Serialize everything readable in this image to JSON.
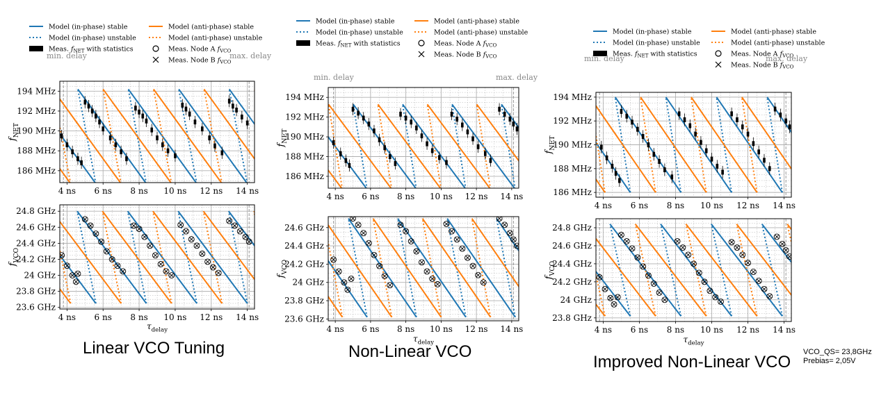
{
  "legend": {
    "inphase_stable": "Model (in-phase) stable",
    "inphase_unstable": "Model (in-phase) unstable",
    "antiphase_stable": "Model (anti-phase) stable",
    "antiphase_unstable": "Model (anti-phase) unstable",
    "fnet_meas": "Meas. f_NET with statistics",
    "nodeA": "Meas. Node A f_VCO",
    "nodeB": "Meas. Node B f_VCO"
  },
  "colors": {
    "inphase": "#1f77b4",
    "antiphase": "#ff7f0e",
    "meas": "#000000",
    "grid": "#b0b0b0",
    "delay_marker": "#999999"
  },
  "delay_labels": {
    "min": "min. delay",
    "max": "max. delay"
  },
  "captions": [
    "Linear VCO Tuning",
    "Non-Linear VCO",
    "Improved Non-Linear VCO"
  ],
  "note": {
    "line1": "VCO_QS= 23,8GHz",
    "line2": "Prebias= 2,05V"
  },
  "chart_data": [
    {
      "type": "line",
      "panel": "Linear VCO Tuning",
      "xlabel": "τ_delay",
      "x_ticks": [
        "4 ns",
        "6 ns",
        "8 ns",
        "10 ns",
        "12 ns",
        "14 ns"
      ],
      "xlim": [
        3.6,
        14.4
      ],
      "delay_markers": [
        3.8,
        14.1
      ],
      "fnet": {
        "ylabel": "f_NET",
        "ylim": [
          184.8,
          195
        ],
        "y_ticks": [
          "186 MHz",
          "188 MHz",
          "190 MHz",
          "192 MHz",
          "194 MHz"
        ],
        "model": {
          "period": 2.8,
          "min": 184.7,
          "max": 194.2,
          "rise_ns": 0.8,
          "ref_x": 5.6,
          "slope": -2.5
        },
        "measured": [
          [
            3.7,
            189.5
          ],
          [
            4.0,
            188.6
          ],
          [
            4.3,
            187.9
          ],
          [
            4.6,
            187.2
          ],
          [
            4.8,
            186.8
          ],
          [
            5.0,
            192.9
          ],
          [
            5.2,
            192.5
          ],
          [
            5.4,
            192.0
          ],
          [
            5.6,
            191.5
          ],
          [
            5.8,
            190.9
          ],
          [
            6.0,
            190.2
          ],
          [
            6.4,
            189.3
          ],
          [
            6.7,
            188.6
          ],
          [
            7.0,
            187.9
          ],
          [
            7.3,
            187.2
          ],
          [
            7.8,
            192.3
          ],
          [
            8.0,
            191.9
          ],
          [
            8.2,
            191.5
          ],
          [
            8.4,
            191.0
          ],
          [
            8.7,
            190.1
          ],
          [
            9.0,
            189.3
          ],
          [
            9.3,
            188.6
          ],
          [
            9.6,
            188.0
          ],
          [
            10.0,
            187.5
          ],
          [
            10.4,
            192.6
          ],
          [
            10.6,
            192.2
          ],
          [
            10.8,
            191.7
          ],
          [
            11.1,
            190.9
          ],
          [
            11.5,
            190.2
          ],
          [
            11.9,
            189.3
          ],
          [
            12.2,
            188.5
          ],
          [
            12.6,
            187.8
          ],
          [
            13.0,
            193.0
          ],
          [
            13.2,
            192.5
          ],
          [
            13.4,
            192.1
          ],
          [
            13.7,
            191.4
          ],
          [
            14.0,
            190.8
          ]
        ]
      },
      "fvco": {
        "ylabel": "f_VCO",
        "ylim": [
          23.58,
          24.88
        ],
        "y_ticks": [
          "23.6 GHz",
          "23.8 GHz",
          "24 GHz",
          "24.2 GHz",
          "24.4 GHz",
          "24.6 GHz",
          "24.8 GHz"
        ],
        "model": {
          "period": 2.8,
          "min": 23.65,
          "max": 24.8,
          "rise_ns": 0.8,
          "ref_x": 5.6,
          "slope": -0.3
        },
        "measured": [
          [
            3.7,
            24.25
          ],
          [
            4.0,
            24.12
          ],
          [
            4.3,
            24.0
          ],
          [
            4.5,
            23.92
          ],
          [
            4.6,
            24.02
          ],
          [
            5.0,
            24.7
          ],
          [
            5.3,
            24.62
          ],
          [
            5.6,
            24.52
          ],
          [
            5.9,
            24.42
          ],
          [
            6.2,
            24.3
          ],
          [
            6.5,
            24.2
          ],
          [
            6.8,
            24.12
          ],
          [
            7.1,
            24.05
          ],
          [
            7.7,
            24.62
          ],
          [
            8.0,
            24.58
          ],
          [
            8.3,
            24.48
          ],
          [
            8.6,
            24.37
          ],
          [
            8.9,
            24.25
          ],
          [
            9.2,
            24.14
          ],
          [
            9.5,
            24.05
          ],
          [
            9.8,
            24.0
          ],
          [
            10.3,
            24.63
          ],
          [
            10.6,
            24.55
          ],
          [
            10.9,
            24.45
          ],
          [
            11.2,
            24.37
          ],
          [
            11.5,
            24.27
          ],
          [
            11.8,
            24.17
          ],
          [
            12.1,
            24.1
          ],
          [
            12.4,
            24.03
          ],
          [
            13.0,
            24.68
          ],
          [
            13.3,
            24.62
          ],
          [
            13.6,
            24.55
          ],
          [
            13.9,
            24.48
          ],
          [
            14.1,
            24.42
          ]
        ]
      }
    },
    {
      "type": "line",
      "panel": "Non-Linear VCO",
      "xlabel": "τ_delay",
      "x_ticks": [
        "4 ns",
        "6 ns",
        "8 ns",
        "10 ns",
        "12 ns",
        "14 ns"
      ],
      "xlim": [
        3.6,
        14.4
      ],
      "delay_markers": [
        3.9,
        14.1
      ],
      "fnet": {
        "ylabel": "f_NET",
        "ylim": [
          184.8,
          195
        ],
        "y_ticks": [
          "186 MHz",
          "188 MHz",
          "190 MHz",
          "192 MHz",
          "194 MHz"
        ],
        "model": {
          "period": 2.8,
          "min": 184.7,
          "max": 193.3,
          "rise_ns": 0.9,
          "ref_x": 5.8,
          "slope": -2.4
        },
        "measured": [
          [
            3.9,
            189.4
          ],
          [
            4.3,
            188.3
          ],
          [
            4.6,
            187.6
          ],
          [
            4.8,
            187.1
          ],
          [
            5.0,
            192.8
          ],
          [
            5.3,
            192.4
          ],
          [
            5.6,
            191.9
          ],
          [
            5.9,
            191.3
          ],
          [
            6.2,
            190.6
          ],
          [
            6.5,
            189.7
          ],
          [
            6.8,
            188.9
          ],
          [
            7.1,
            188.0
          ],
          [
            7.4,
            187.3
          ],
          [
            7.7,
            192.3
          ],
          [
            8.0,
            191.9
          ],
          [
            8.3,
            191.5
          ],
          [
            8.6,
            190.9
          ],
          [
            8.9,
            190.1
          ],
          [
            9.2,
            189.3
          ],
          [
            9.5,
            188.6
          ],
          [
            9.9,
            187.9
          ],
          [
            10.3,
            187.4
          ],
          [
            10.6,
            192.3
          ],
          [
            10.9,
            191.8
          ],
          [
            11.2,
            191.2
          ],
          [
            11.5,
            190.5
          ],
          [
            11.8,
            189.8
          ],
          [
            12.1,
            189.0
          ],
          [
            12.5,
            188.3
          ],
          [
            12.8,
            187.6
          ],
          [
            13.3,
            192.8
          ],
          [
            13.6,
            192.3
          ],
          [
            13.9,
            191.8
          ],
          [
            14.1,
            191.3
          ],
          [
            14.3,
            190.8
          ]
        ]
      },
      "fvco": {
        "ylabel": "f_VCO",
        "ylim": [
          23.58,
          24.72
        ],
        "y_ticks": [
          "23.6 GHz",
          "23.8 GHz",
          "24 GHz",
          "24.2 GHz",
          "24.4 GHz",
          "24.6 GHz"
        ],
        "model": {
          "period": 2.8,
          "min": 23.62,
          "max": 24.7,
          "rise_ns": 0.9,
          "ref_x": 5.8,
          "slope": -0.28
        },
        "measured": [
          [
            3.9,
            24.25
          ],
          [
            4.2,
            24.12
          ],
          [
            4.5,
            24.0
          ],
          [
            4.7,
            23.92
          ],
          [
            4.9,
            24.04
          ],
          [
            5.0,
            24.7
          ],
          [
            5.3,
            24.63
          ],
          [
            5.6,
            24.54
          ],
          [
            5.9,
            24.43
          ],
          [
            6.2,
            24.3
          ],
          [
            6.5,
            24.18
          ],
          [
            6.8,
            24.07
          ],
          [
            7.1,
            23.97
          ],
          [
            7.7,
            24.63
          ],
          [
            8.0,
            24.56
          ],
          [
            8.3,
            24.45
          ],
          [
            8.6,
            24.34
          ],
          [
            8.9,
            24.22
          ],
          [
            9.2,
            24.12
          ],
          [
            9.5,
            24.04
          ],
          [
            9.8,
            23.98
          ],
          [
            10.3,
            24.64
          ],
          [
            10.6,
            24.56
          ],
          [
            10.9,
            24.47
          ],
          [
            11.2,
            24.37
          ],
          [
            11.5,
            24.27
          ],
          [
            11.8,
            24.18
          ],
          [
            12.1,
            24.08
          ],
          [
            12.4,
            24.0
          ],
          [
            13.3,
            24.7
          ],
          [
            13.6,
            24.63
          ],
          [
            13.9,
            24.54
          ],
          [
            14.1,
            24.47
          ],
          [
            14.3,
            24.4
          ]
        ]
      }
    },
    {
      "type": "line",
      "panel": "Improved Non-Linear VCO",
      "xlabel": "τ_delay",
      "x_ticks": [
        "4 ns",
        "6 ns",
        "8 ns",
        "10 ns",
        "12 ns",
        "14 ns"
      ],
      "xlim": [
        3.6,
        14.4
      ],
      "delay_markers": [
        3.8,
        14.1
      ],
      "fnet": {
        "ylabel": "f_NET",
        "ylim": [
          185.6,
          194.4
        ],
        "y_ticks": [
          "186 MHz",
          "188 MHz",
          "190 MHz",
          "192 MHz",
          "194 MHz"
        ],
        "model": {
          "period": 2.8,
          "min": 186.0,
          "max": 194.0,
          "rise_ns": 0.85,
          "ref_x": 5.5,
          "slope": -2.2
        },
        "measured": [
          [
            3.9,
            189.8
          ],
          [
            4.2,
            188.9
          ],
          [
            4.5,
            188.2
          ],
          [
            4.7,
            187.6
          ],
          [
            4.9,
            187.0
          ],
          [
            5.0,
            192.8
          ],
          [
            5.3,
            192.4
          ],
          [
            5.6,
            191.9
          ],
          [
            5.9,
            191.3
          ],
          [
            6.2,
            190.7
          ],
          [
            6.5,
            190.0
          ],
          [
            6.8,
            189.2
          ],
          [
            7.1,
            188.6
          ],
          [
            7.4,
            187.9
          ],
          [
            7.8,
            187.3
          ],
          [
            8.2,
            192.6
          ],
          [
            8.5,
            192.1
          ],
          [
            8.8,
            191.6
          ],
          [
            9.1,
            190.9
          ],
          [
            9.4,
            190.2
          ],
          [
            9.7,
            189.5
          ],
          [
            10.0,
            188.8
          ],
          [
            10.3,
            188.2
          ],
          [
            10.6,
            187.7
          ],
          [
            11.1,
            192.6
          ],
          [
            11.4,
            192.1
          ],
          [
            11.7,
            191.5
          ],
          [
            12.0,
            190.9
          ],
          [
            12.3,
            190.1
          ],
          [
            12.6,
            189.4
          ],
          [
            12.9,
            188.7
          ],
          [
            13.2,
            188.0
          ],
          [
            13.5,
            193.0
          ],
          [
            13.8,
            192.5
          ],
          [
            14.1,
            192.0
          ],
          [
            14.3,
            191.5
          ]
        ]
      },
      "fvco": {
        "ylabel": "f_VCO",
        "ylim": [
          23.76,
          24.9
        ],
        "y_ticks": [
          "23.8 GHz",
          "24 GHz",
          "24.2 GHz",
          "24.4 GHz",
          "24.6 GHz",
          "24.8 GHz"
        ],
        "model": {
          "period": 2.8,
          "min": 23.82,
          "max": 24.84,
          "rise_ns": 0.85,
          "ref_x": 5.5,
          "slope": -0.26
        },
        "measured": [
          [
            3.8,
            24.25
          ],
          [
            4.1,
            24.12
          ],
          [
            4.4,
            24.02
          ],
          [
            4.6,
            23.95
          ],
          [
            4.8,
            24.03
          ],
          [
            5.0,
            24.72
          ],
          [
            5.3,
            24.65
          ],
          [
            5.6,
            24.57
          ],
          [
            5.9,
            24.47
          ],
          [
            6.2,
            24.37
          ],
          [
            6.5,
            24.27
          ],
          [
            6.8,
            24.18
          ],
          [
            7.1,
            24.08
          ],
          [
            7.4,
            24.0
          ],
          [
            8.1,
            24.65
          ],
          [
            8.4,
            24.58
          ],
          [
            8.7,
            24.5
          ],
          [
            9.0,
            24.4
          ],
          [
            9.3,
            24.3
          ],
          [
            9.6,
            24.2
          ],
          [
            9.9,
            24.1
          ],
          [
            10.2,
            24.03
          ],
          [
            10.5,
            23.98
          ],
          [
            11.1,
            24.64
          ],
          [
            11.4,
            24.58
          ],
          [
            11.7,
            24.5
          ],
          [
            12.0,
            24.41
          ],
          [
            12.3,
            24.31
          ],
          [
            12.6,
            24.21
          ],
          [
            12.9,
            24.12
          ],
          [
            13.2,
            24.04
          ],
          [
            13.6,
            24.7
          ],
          [
            13.9,
            24.62
          ],
          [
            14.1,
            24.55
          ],
          [
            14.3,
            24.48
          ]
        ]
      }
    }
  ]
}
